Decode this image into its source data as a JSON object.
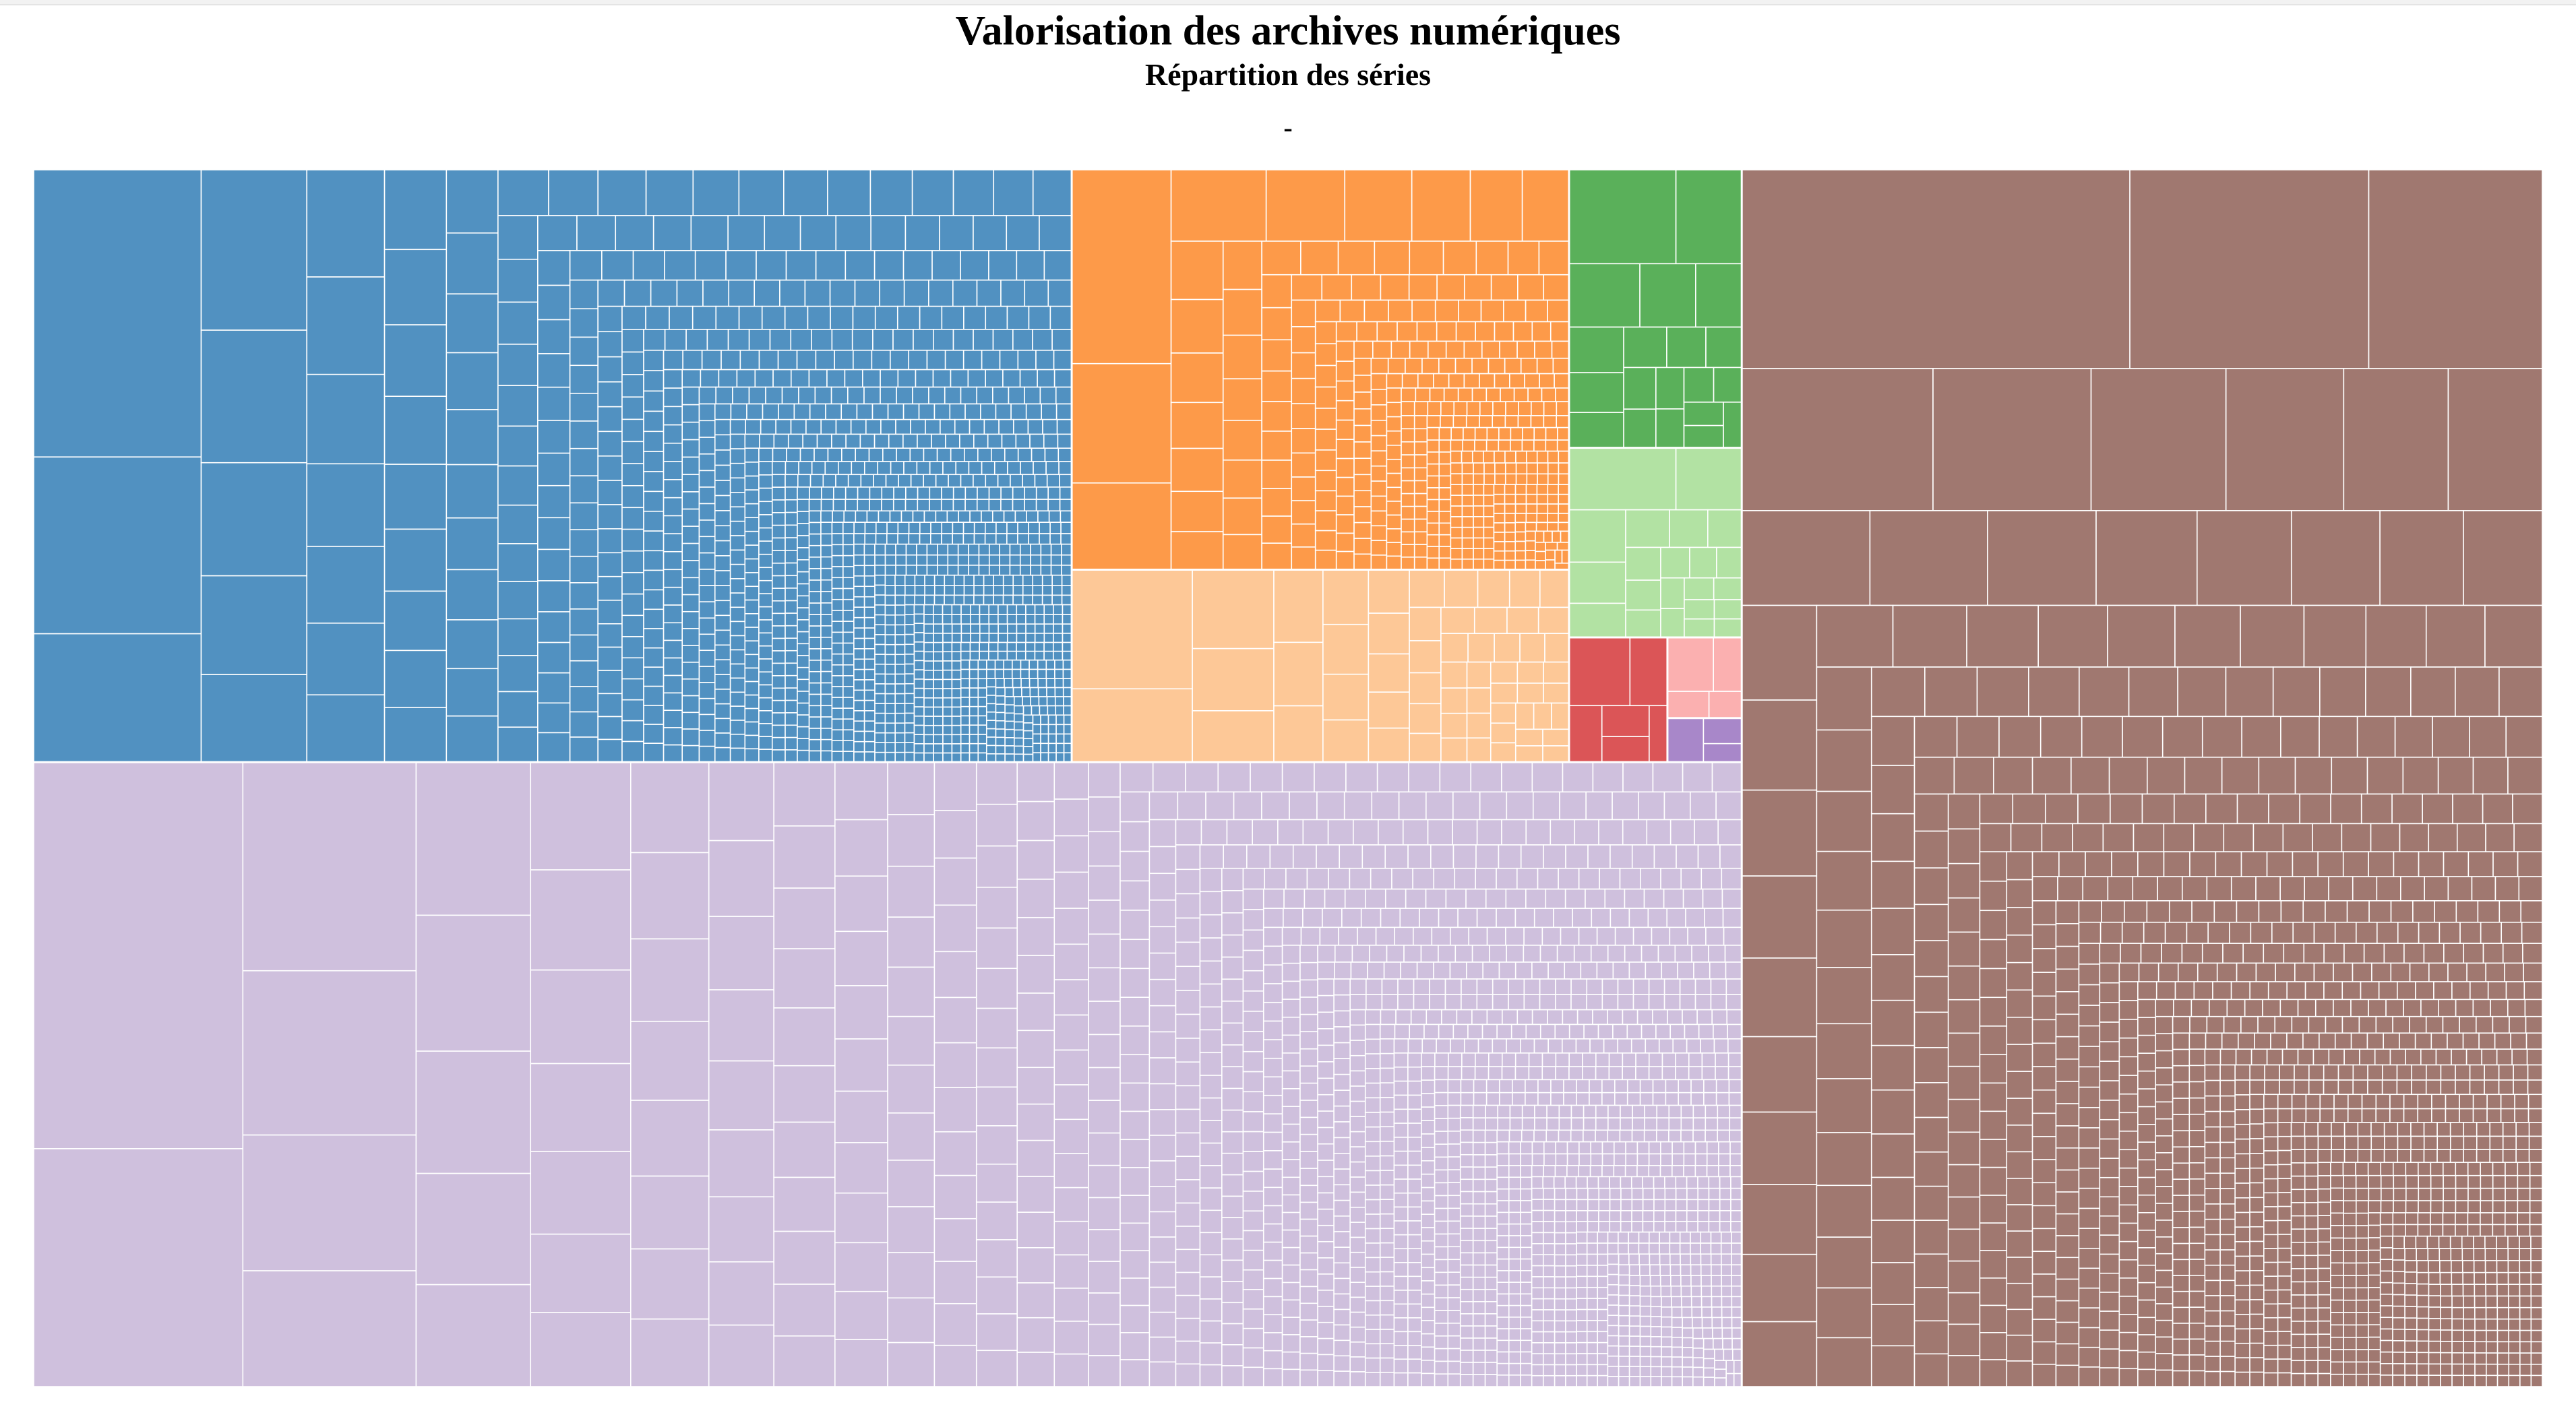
{
  "chart_data": {
    "type": "treemap",
    "title": "Valorisation des archives numériques",
    "subtitle": "Répartition des séries",
    "note": "-",
    "leaf_divider_color": "#ffffff",
    "groups": [
      {
        "id": "g1",
        "color": "#5191c1",
        "weight": 2254,
        "leaves": 1400
      },
      {
        "id": "g2",
        "color": "#fd9a49",
        "weight": 729,
        "leaves": 420
      },
      {
        "id": "g3",
        "color": "#fdc897",
        "weight": 351,
        "leaves": 60
      },
      {
        "id": "g4",
        "color": "#5ab05a",
        "weight": 176,
        "leaves": 20
      },
      {
        "id": "g5",
        "color": "#b2e2a3",
        "weight": 120,
        "leaves": 22
      },
      {
        "id": "g6",
        "color": "#db5557",
        "weight": 45,
        "leaves": 6
      },
      {
        "id": "g7",
        "color": "#fbb0b0",
        "weight": 22,
        "leaves": 4
      },
      {
        "id": "g8",
        "color": "#a887c9",
        "weight": 12,
        "leaves": 3
      },
      {
        "id": "g9",
        "color": "#cfc0dd",
        "weight": 3910,
        "leaves": 1700
      },
      {
        "id": "g10",
        "color": "#a07870",
        "weight": 3571,
        "leaves": 1300
      }
    ]
  }
}
